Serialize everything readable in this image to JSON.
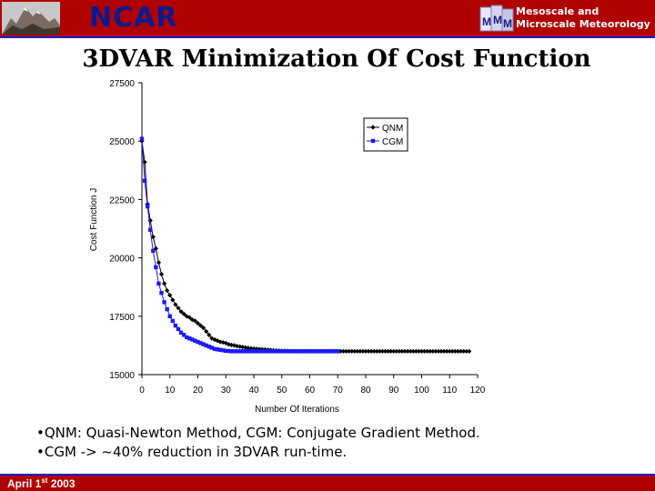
{
  "header": {
    "org_name": "NCAR",
    "division_line1": "Mesoscale and",
    "division_line2": "Microscale Meteorology",
    "logo_icon": "mountains-icon",
    "division_logo_icon": "mmm-logo-icon",
    "bar_color": "#b00000",
    "accent_color": "#2020c0"
  },
  "slide": {
    "title": "3DVAR Minimization Of Cost Function",
    "bullets": [
      "•QNM: Quasi-Newton Method, CGM: Conjugate Gradient Method.",
      "•CGM -> ~40% reduction in 3DVAR run-time."
    ]
  },
  "footer": {
    "date_prefix": "April 1",
    "date_suffix": "st",
    "date_year": "2003"
  },
  "chart_data": {
    "type": "line",
    "title": "",
    "xlabel": "Number Of Iterations",
    "ylabel": "Cost Function J",
    "xlim": [
      0,
      120
    ],
    "ylim": [
      15000,
      27500
    ],
    "xticks": [
      0,
      10,
      20,
      30,
      40,
      50,
      60,
      70,
      80,
      90,
      100,
      110,
      120
    ],
    "yticks": [
      15000,
      17500,
      20000,
      22500,
      25000,
      27500
    ],
    "grid": false,
    "legend_position": "top-right",
    "series": [
      {
        "name": "QNM",
        "color": "#000000",
        "marker": "diamond",
        "x": [
          0,
          1,
          2,
          3,
          4,
          5,
          6,
          7,
          8,
          9,
          10,
          11,
          12,
          13,
          14,
          15,
          16,
          17,
          18,
          19,
          20,
          21,
          22,
          23,
          24,
          25,
          26,
          27,
          28,
          29,
          30,
          31,
          32,
          33,
          34,
          35,
          36,
          37,
          38,
          39,
          40,
          41,
          42,
          43,
          44,
          45,
          46,
          47,
          48,
          49,
          50,
          51,
          52,
          53,
          54,
          55,
          56,
          57,
          58,
          59,
          60,
          61,
          62,
          63,
          64,
          65,
          66,
          67,
          68,
          69,
          70,
          71,
          72,
          73,
          74,
          75,
          76,
          77,
          78,
          79,
          80,
          81,
          82,
          83,
          84,
          85,
          86,
          87,
          88,
          89,
          90,
          91,
          92,
          93,
          94,
          95,
          96,
          97,
          98,
          99,
          100,
          101,
          102,
          103,
          104,
          105,
          106,
          107,
          108,
          109,
          110,
          111,
          112,
          113,
          114,
          115,
          116,
          117
        ],
        "y": [
          25000,
          24100,
          22300,
          21600,
          20900,
          20400,
          19800,
          19300,
          18900,
          18600,
          18400,
          18200,
          18000,
          17850,
          17700,
          17600,
          17500,
          17450,
          17350,
          17300,
          17200,
          17100,
          17000,
          16850,
          16700,
          16550,
          16500,
          16450,
          16400,
          16380,
          16350,
          16300,
          16270,
          16250,
          16220,
          16200,
          16180,
          16160,
          16140,
          16120,
          16110,
          16100,
          16090,
          16080,
          16070,
          16060,
          16050,
          16040,
          16030,
          16025,
          16020,
          16015,
          16010,
          16005,
          16000,
          16000,
          16000,
          16000,
          16000,
          16000,
          16000,
          16000,
          16000,
          16000,
          16000,
          16000,
          16000,
          16000,
          16000,
          16000,
          16000,
          16000,
          16000,
          16000,
          16000,
          16000,
          16000,
          16000,
          16000,
          16000,
          16000,
          16000,
          16000,
          16000,
          16000,
          16000,
          16000,
          16000,
          16000,
          16000,
          16000,
          16000,
          16000,
          16000,
          16000,
          16000,
          16000,
          16000,
          16000,
          16000,
          16000,
          16000,
          16000,
          16000,
          16000,
          16000,
          16000,
          16000,
          16000,
          16000,
          16000,
          16000,
          16000,
          16000,
          16000,
          16000,
          16000,
          16000
        ]
      },
      {
        "name": "CGM",
        "color": "#1a1aff",
        "marker": "square",
        "x": [
          0,
          1,
          2,
          3,
          4,
          5,
          6,
          7,
          8,
          9,
          10,
          11,
          12,
          13,
          14,
          15,
          16,
          17,
          18,
          19,
          20,
          21,
          22,
          23,
          24,
          25,
          26,
          27,
          28,
          29,
          30,
          31,
          32,
          33,
          34,
          35,
          36,
          37,
          38,
          39,
          40,
          41,
          42,
          43,
          44,
          45,
          46,
          47,
          48,
          49,
          50,
          51,
          52,
          53,
          54,
          55,
          56,
          57,
          58,
          59,
          60,
          61,
          62,
          63,
          64,
          65,
          66,
          67,
          68,
          69,
          70
        ],
        "y": [
          25100,
          23300,
          22200,
          21200,
          20300,
          19600,
          18900,
          18500,
          18100,
          17800,
          17500,
          17300,
          17100,
          16950,
          16800,
          16700,
          16600,
          16550,
          16500,
          16450,
          16400,
          16350,
          16300,
          16250,
          16200,
          16150,
          16100,
          16080,
          16060,
          16040,
          16020,
          16010,
          16000,
          16000,
          16000,
          16000,
          16000,
          16000,
          16000,
          16000,
          16000,
          16000,
          16000,
          16000,
          16000,
          16000,
          16000,
          16000,
          16000,
          16000,
          16000,
          16000,
          16000,
          16000,
          16000,
          16000,
          16000,
          16000,
          16000,
          16000,
          16000,
          16000,
          16000,
          16000,
          16000,
          16000,
          16000,
          16000,
          16000,
          16000,
          16000
        ]
      }
    ]
  }
}
